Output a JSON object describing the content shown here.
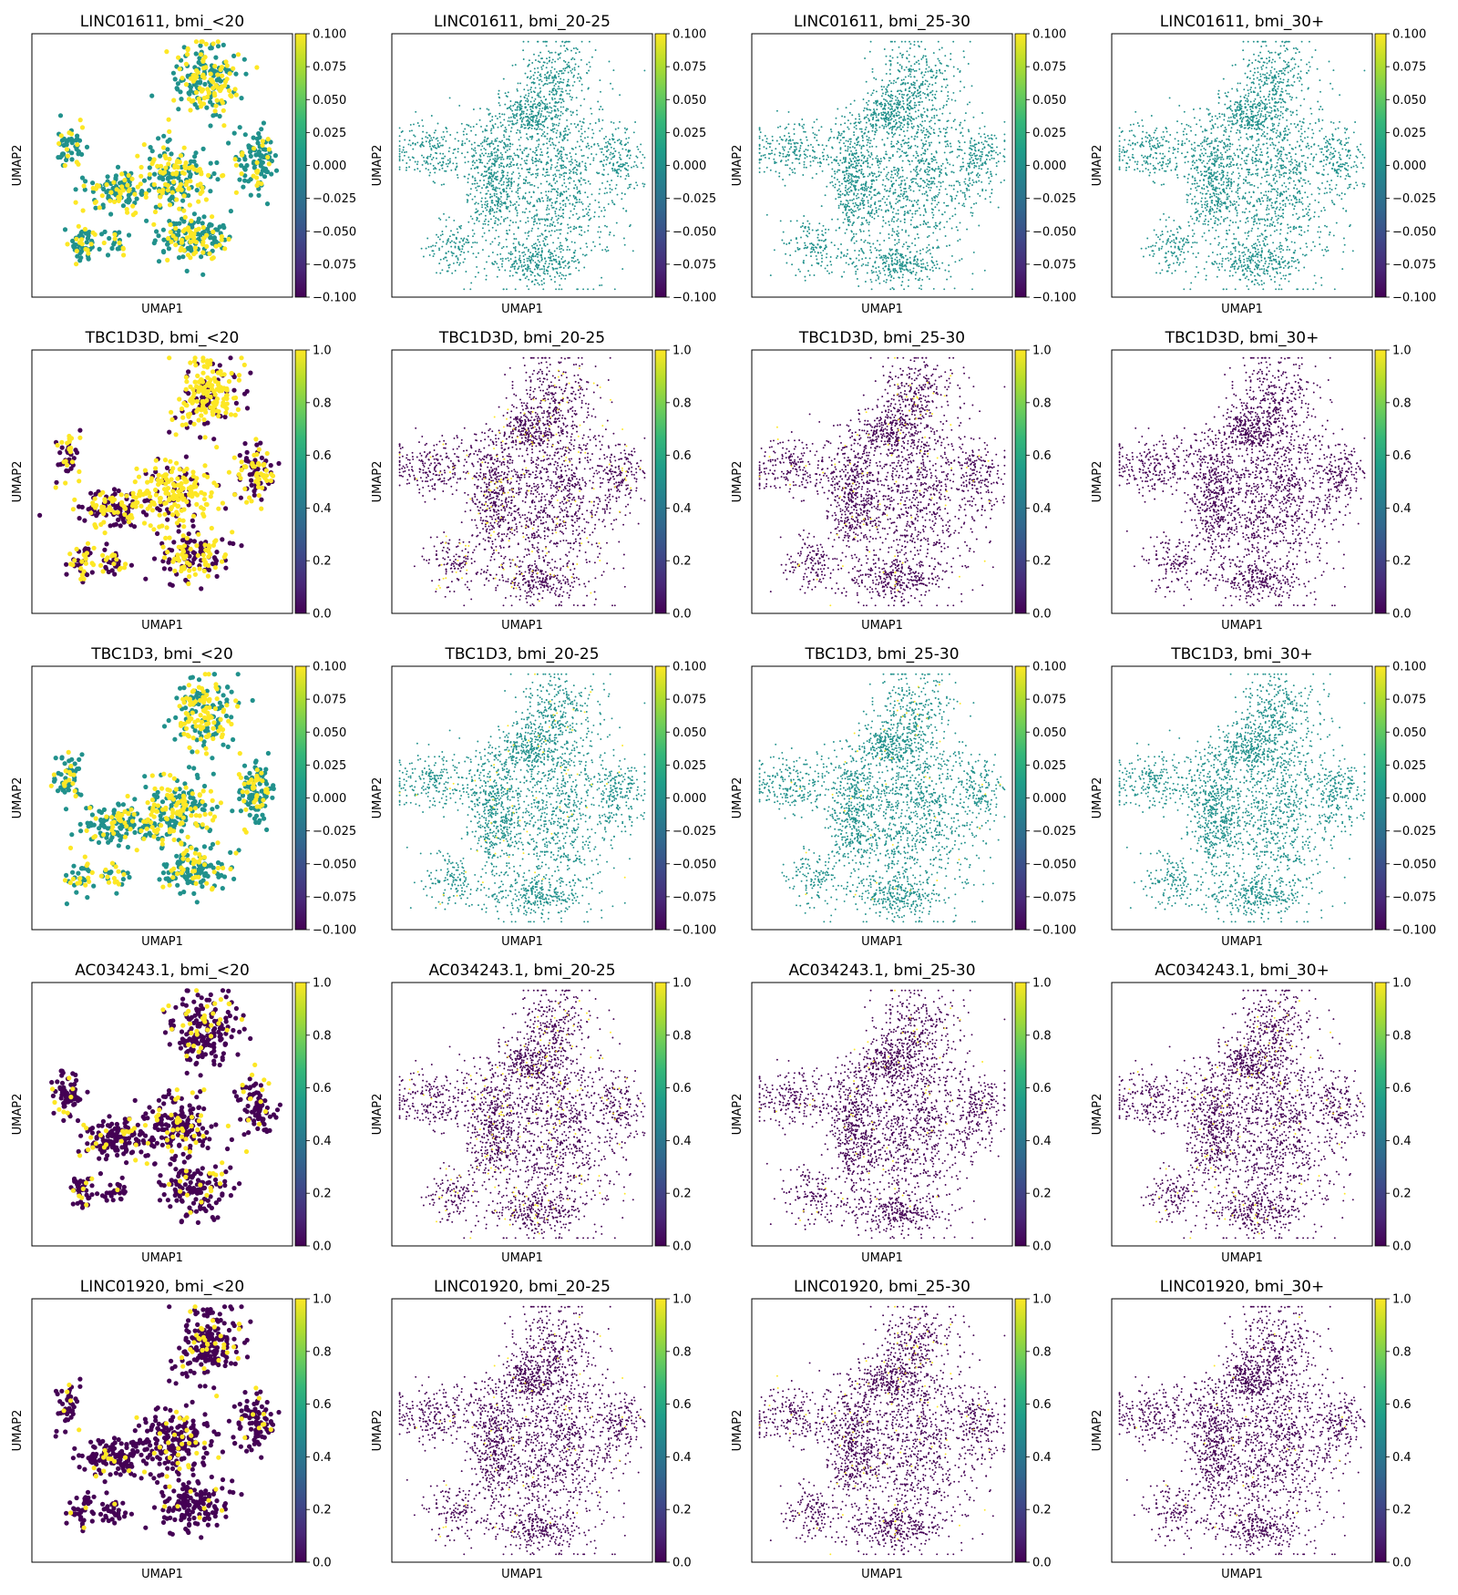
{
  "colors": {
    "viridis": [
      "#440154",
      "#482878",
      "#3e4989",
      "#31688e",
      "#26828e",
      "#1f9e89",
      "#35b779",
      "#6ece58",
      "#b5de2b",
      "#fde725"
    ],
    "zero_color": "#21918c",
    "bg_point_color": "#440154",
    "highlight_color": "#fde725"
  },
  "chart_data": {
    "type": "scatter",
    "layout": "5 rows x 4 columns of UMAP embeddings, one viridis colorbar per panel",
    "x_label": "UMAP1",
    "y_label": "UMAP2",
    "genes": [
      "LINC01611",
      "TBC1D3D",
      "TBC1D3",
      "AC034243.1",
      "LINC01920"
    ],
    "bmi_groups": [
      "bmi_<20",
      "bmi_20-25",
      "bmi_25-30",
      "bmi_30+"
    ],
    "color_scales": {
      "zero": {
        "range": [
          -0.1,
          0.1
        ],
        "ticks": [
          "0.100",
          "0.075",
          "0.050",
          "0.025",
          "0.000",
          "−0.025",
          "−0.050",
          "−0.075",
          "−0.100"
        ]
      },
      "unit": {
        "range": [
          0.0,
          1.0
        ],
        "ticks": [
          "1.0",
          "0.8",
          "0.6",
          "0.4",
          "0.2",
          "0.0"
        ]
      }
    },
    "panels": [
      {
        "title": "LINC01611, bmi_<20",
        "scale": "zero",
        "expressing_fraction": 0.3
      },
      {
        "title": "LINC01611, bmi_20-25",
        "scale": "zero",
        "expressing_fraction": 0.0
      },
      {
        "title": "LINC01611, bmi_25-30",
        "scale": "zero",
        "expressing_fraction": 0.0
      },
      {
        "title": "LINC01611, bmi_30+",
        "scale": "zero",
        "expressing_fraction": 0.0
      },
      {
        "title": "TBC1D3D, bmi_<20",
        "scale": "unit",
        "expressing_fraction": 0.45
      },
      {
        "title": "TBC1D3D, bmi_20-25",
        "scale": "unit",
        "expressing_fraction": 0.06
      },
      {
        "title": "TBC1D3D, bmi_25-30",
        "scale": "unit",
        "expressing_fraction": 0.03
      },
      {
        "title": "TBC1D3D, bmi_30+",
        "scale": "unit",
        "expressing_fraction": 0.0
      },
      {
        "title": "TBC1D3, bmi_<20",
        "scale": "zero",
        "expressing_fraction": 0.3
      },
      {
        "title": "TBC1D3, bmi_20-25",
        "scale": "zero",
        "expressing_fraction": 0.02
      },
      {
        "title": "TBC1D3, bmi_25-30",
        "scale": "zero",
        "expressing_fraction": 0.02
      },
      {
        "title": "TBC1D3, bmi_30+",
        "scale": "zero",
        "expressing_fraction": 0.0
      },
      {
        "title": "AC034243.1, bmi_<20",
        "scale": "unit",
        "expressing_fraction": 0.12
      },
      {
        "title": "AC034243.1, bmi_20-25",
        "scale": "unit",
        "expressing_fraction": 0.06
      },
      {
        "title": "AC034243.1, bmi_25-30",
        "scale": "unit",
        "expressing_fraction": 0.02
      },
      {
        "title": "AC034243.1, bmi_30+",
        "scale": "unit",
        "expressing_fraction": 0.04
      },
      {
        "title": "LINC01920, bmi_<20",
        "scale": "unit",
        "expressing_fraction": 0.08
      },
      {
        "title": "LINC01920, bmi_20-25",
        "scale": "unit",
        "expressing_fraction": 0.02
      },
      {
        "title": "LINC01920, bmi_25-30",
        "scale": "unit",
        "expressing_fraction": 0.03
      },
      {
        "title": "LINC01920, bmi_30+",
        "scale": "unit",
        "expressing_fraction": 0.01
      }
    ]
  }
}
